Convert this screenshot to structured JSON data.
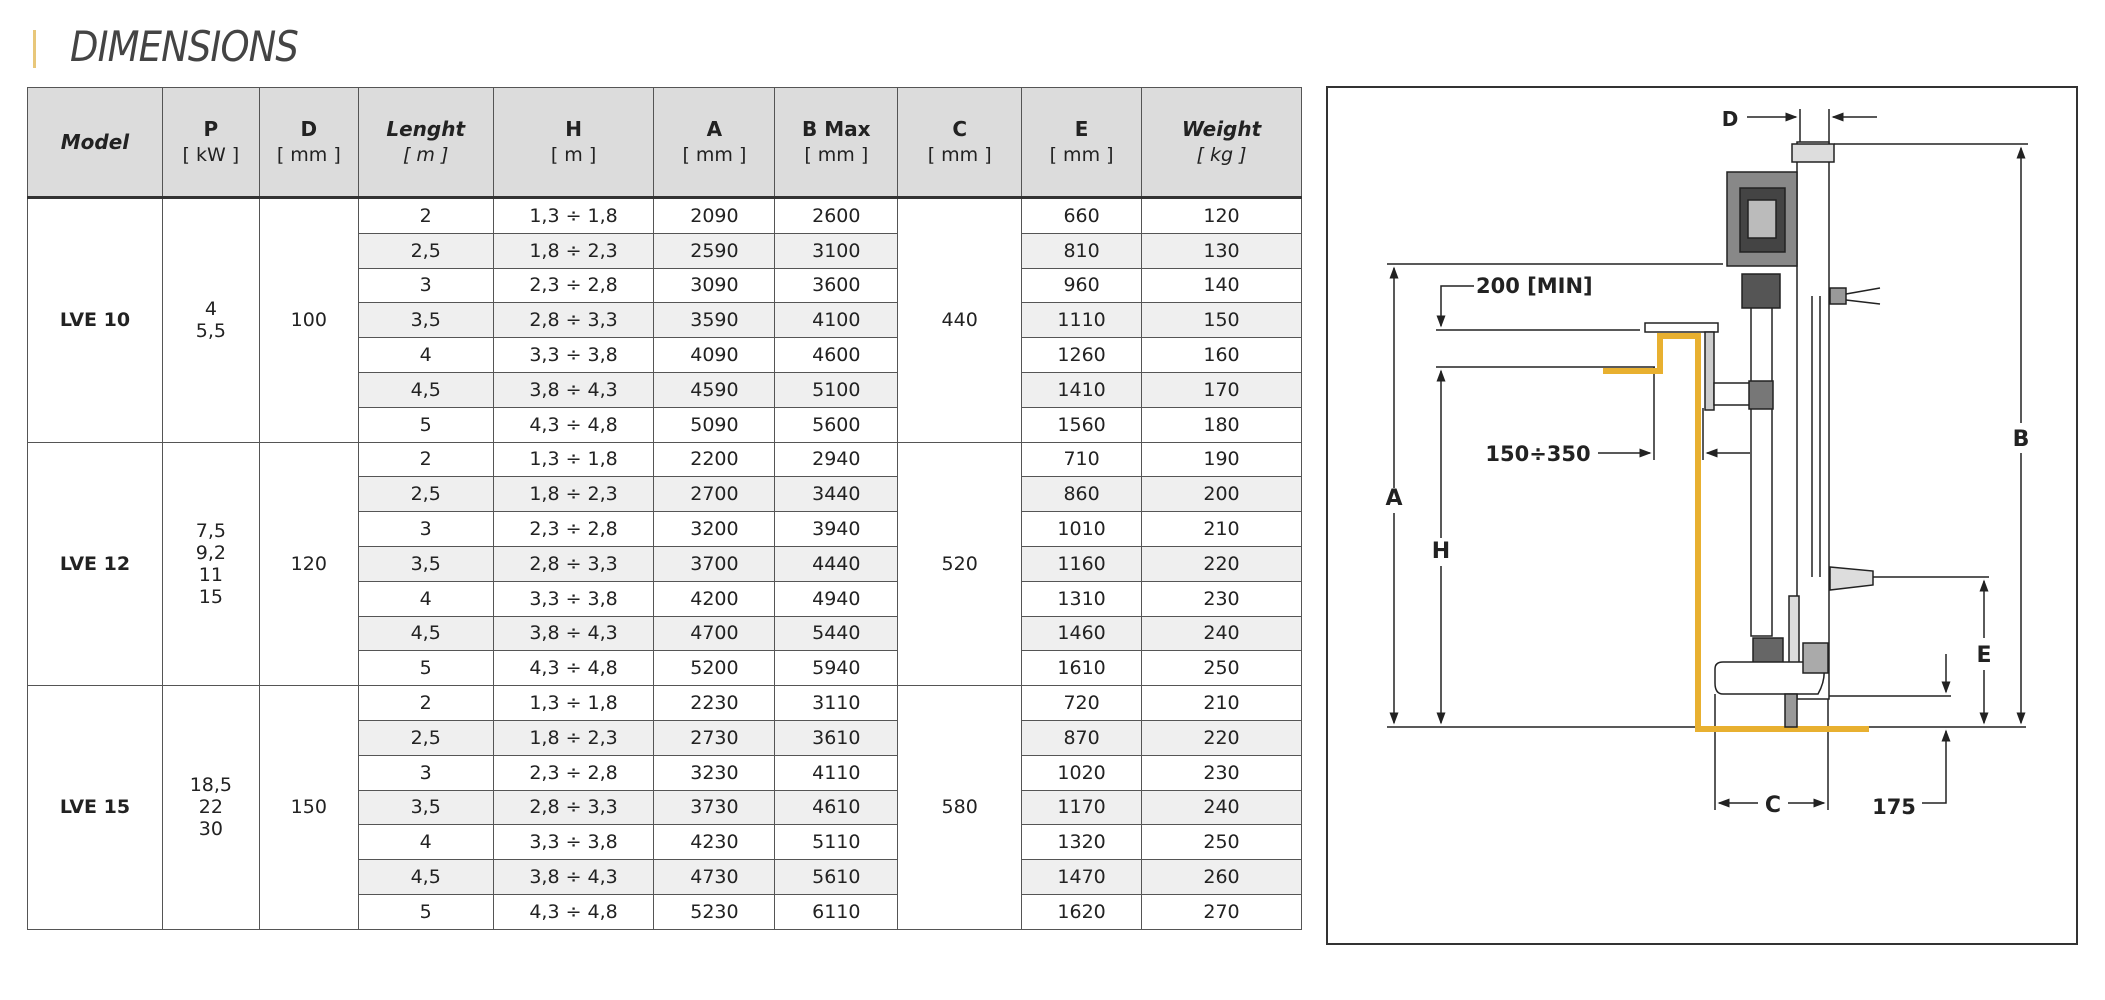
{
  "title": "DIMENSIONS",
  "table": {
    "headers": [
      {
        "label": "Model",
        "unit": ""
      },
      {
        "label": "P",
        "unit": "[ kW ]"
      },
      {
        "label": "D",
        "unit": "[ mm ]"
      },
      {
        "label": "Lenght",
        "unit": "[ m ]"
      },
      {
        "label": "H",
        "unit": "[ m ]"
      },
      {
        "label": "A",
        "unit": "[ mm ]"
      },
      {
        "label": "B Max",
        "unit": "[ mm ]"
      },
      {
        "label": "C",
        "unit": "[ mm ]"
      },
      {
        "label": "E",
        "unit": "[ mm ]"
      },
      {
        "label": "Weight",
        "unit": "[ kg ]"
      }
    ],
    "groups": [
      {
        "model": "LVE 10",
        "power": [
          "4",
          "5,5"
        ],
        "d": "100",
        "c": "440",
        "rows": [
          [
            "2",
            "1,3 ÷ 1,8",
            "2090",
            "2600",
            "660",
            "120"
          ],
          [
            "2,5",
            "1,8 ÷ 2,3",
            "2590",
            "3100",
            "810",
            "130"
          ],
          [
            "3",
            "2,3 ÷ 2,8",
            "3090",
            "3600",
            "960",
            "140"
          ],
          [
            "3,5",
            "2,8 ÷ 3,3",
            "3590",
            "4100",
            "1110",
            "150"
          ],
          [
            "4",
            "3,3 ÷ 3,8",
            "4090",
            "4600",
            "1260",
            "160"
          ],
          [
            "4,5",
            "3,8 ÷ 4,3",
            "4590",
            "5100",
            "1410",
            "170"
          ],
          [
            "5",
            "4,3 ÷ 4,8",
            "5090",
            "5600",
            "1560",
            "180"
          ]
        ]
      },
      {
        "model": "LVE 12",
        "power": [
          "7,5",
          "9,2",
          "11",
          "15"
        ],
        "d": "120",
        "c": "520",
        "rows": [
          [
            "2",
            "1,3 ÷ 1,8",
            "2200",
            "2940",
            "710",
            "190"
          ],
          [
            "2,5",
            "1,8 ÷ 2,3",
            "2700",
            "3440",
            "860",
            "200"
          ],
          [
            "3",
            "2,3 ÷ 2,8",
            "3200",
            "3940",
            "1010",
            "210"
          ],
          [
            "3,5",
            "2,8 ÷ 3,3",
            "3700",
            "4440",
            "1160",
            "220"
          ],
          [
            "4",
            "3,3 ÷ 3,8",
            "4200",
            "4940",
            "1310",
            "230"
          ],
          [
            "4,5",
            "3,8 ÷ 4,3",
            "4700",
            "5440",
            "1460",
            "240"
          ],
          [
            "5",
            "4,3 ÷ 4,8",
            "5200",
            "5940",
            "1610",
            "250"
          ]
        ]
      },
      {
        "model": "LVE 15",
        "power": [
          "18,5",
          "22",
          "30"
        ],
        "d": "150",
        "c": "580",
        "rows": [
          [
            "2",
            "1,3 ÷ 1,8",
            "2230",
            "3110",
            "720",
            "210"
          ],
          [
            "2,5",
            "1,8 ÷ 2,3",
            "2730",
            "3610",
            "870",
            "220"
          ],
          [
            "3",
            "2,3 ÷ 2,8",
            "3230",
            "4110",
            "1020",
            "230"
          ],
          [
            "3,5",
            "2,8 ÷ 3,3",
            "3730",
            "4610",
            "1170",
            "240"
          ],
          [
            "4",
            "3,3 ÷ 3,8",
            "4230",
            "5110",
            "1320",
            "250"
          ],
          [
            "4,5",
            "3,8 ÷ 4,3",
            "4730",
            "5610",
            "1470",
            "260"
          ],
          [
            "5",
            "4,3 ÷ 4,8",
            "5230",
            "6110",
            "1620",
            "270"
          ]
        ]
      }
    ]
  },
  "diagram": {
    "labels": {
      "d": "D",
      "a": "A",
      "b": "B",
      "h": "H",
      "e": "E",
      "c": "C",
      "min": "200 [MIN]",
      "range": "150÷350",
      "clearance": "175"
    },
    "colors": {
      "wall": "#e8b030",
      "line": "#222222"
    }
  }
}
